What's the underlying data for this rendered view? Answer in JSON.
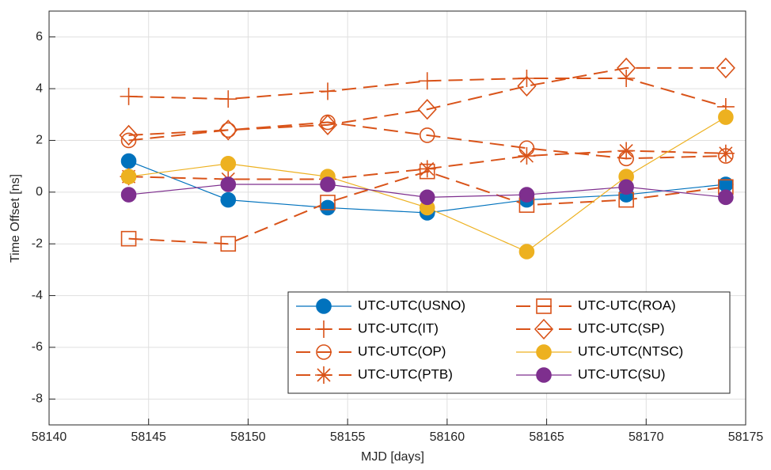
{
  "chart_data": {
    "type": "line",
    "x_label": "MJD [days]",
    "y_label": "Time Offset [ns]",
    "x": [
      58144,
      58149,
      58154,
      58159,
      58164,
      58169,
      58174
    ],
    "series": [
      {
        "name": "UTC-UTC(USNO)",
        "color": "#0072BD",
        "marker": "circle",
        "filled": true,
        "dashed": false,
        "values": [
          1.2,
          -0.3,
          -0.6,
          -0.8,
          -0.3,
          -0.1,
          0.3
        ]
      },
      {
        "name": "UTC-UTC(IT)",
        "color": "#D95319",
        "marker": "plus",
        "filled": false,
        "dashed": true,
        "values": [
          3.7,
          3.6,
          3.9,
          4.3,
          4.4,
          4.4,
          3.3
        ]
      },
      {
        "name": "UTC-UTC(OP)",
        "color": "#D95319",
        "marker": "circle",
        "filled": false,
        "dashed": true,
        "values": [
          2.0,
          2.4,
          2.7,
          2.2,
          1.7,
          1.3,
          1.4
        ]
      },
      {
        "name": "UTC-UTC(PTB)",
        "color": "#D95319",
        "marker": "star",
        "filled": false,
        "dashed": true,
        "values": [
          0.6,
          0.5,
          0.5,
          0.9,
          1.4,
          1.6,
          1.5
        ]
      },
      {
        "name": "UTC-UTC(ROA)",
        "color": "#D95319",
        "marker": "square",
        "filled": false,
        "dashed": true,
        "values": [
          -1.8,
          -2.0,
          -0.4,
          0.8,
          -0.5,
          -0.3,
          0.2
        ]
      },
      {
        "name": "UTC-UTC(SP)",
        "color": "#D95319",
        "marker": "diamond",
        "filled": false,
        "dashed": true,
        "values": [
          2.2,
          2.4,
          2.6,
          3.2,
          4.1,
          4.8,
          4.8
        ]
      },
      {
        "name": "UTC-UTC(NTSC)",
        "color": "#EDB120",
        "marker": "circle",
        "filled": true,
        "dashed": false,
        "values": [
          0.6,
          1.1,
          0.6,
          -0.6,
          -2.3,
          0.6,
          2.9
        ]
      },
      {
        "name": "UTC-UTC(SU)",
        "color": "#7E2F8E",
        "marker": "circle",
        "filled": true,
        "dashed": false,
        "values": [
          -0.1,
          0.3,
          0.3,
          -0.2,
          -0.1,
          0.2,
          -0.2
        ]
      }
    ],
    "xlim": [
      58140,
      58175
    ],
    "xticks": [
      58140,
      58145,
      58150,
      58155,
      58160,
      58165,
      58170,
      58175
    ],
    "ylim": [
      -9,
      7
    ],
    "yticks": [
      -8,
      -6,
      -4,
      -2,
      0,
      2,
      4,
      6
    ],
    "grid": true,
    "legend_position": "lower right",
    "legend_columns": 2
  }
}
